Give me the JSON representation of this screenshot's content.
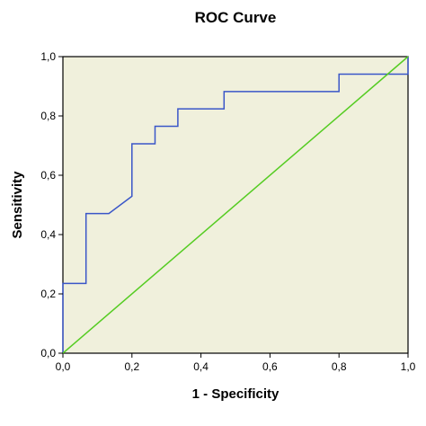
{
  "chart_data": {
    "type": "line",
    "title": "ROC Curve",
    "xlabel": "1 - Specificity",
    "ylabel": "Sensitivity",
    "xlim": [
      0,
      1
    ],
    "ylim": [
      0,
      1
    ],
    "xticks": [
      0,
      0.2,
      0.4,
      0.6,
      0.8,
      1.0
    ],
    "yticks": [
      0,
      0.2,
      0.4,
      0.6,
      0.8,
      1.0
    ],
    "xtick_labels": [
      "0,0",
      "0,2",
      "0,4",
      "0,6",
      "0,8",
      "1,0"
    ],
    "ytick_labels": [
      "0,0",
      "0,2",
      "0,4",
      "0,6",
      "0,8",
      "1,0"
    ],
    "grid": false,
    "background_color": "#f0f0dc",
    "series": [
      {
        "style": "step",
        "color": "#3a56c8",
        "x": [
          0,
          0,
          0.067,
          0.067,
          0.133,
          0.2,
          0.2,
          0.267,
          0.267,
          0.333,
          0.333,
          0.467,
          0.467,
          0.8,
          0.8,
          1.0,
          1.0
        ],
        "y": [
          0,
          0.235,
          0.235,
          0.471,
          0.471,
          0.529,
          0.706,
          0.706,
          0.765,
          0.765,
          0.824,
          0.824,
          0.882,
          0.882,
          0.941,
          0.941,
          1.0
        ]
      },
      {
        "style": "line",
        "color": "#55cc22",
        "x": [
          0,
          1
        ],
        "y": [
          0,
          1
        ]
      }
    ]
  }
}
